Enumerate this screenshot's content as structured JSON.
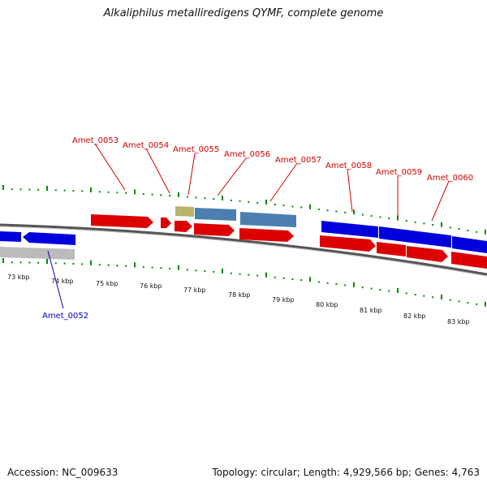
{
  "title": "Alkaliphilus metalliredigens QYMF, complete genome",
  "footer": {
    "accession": "Accession: NC_009633",
    "summary": "Topology: circular; Length: 4,929,566 bp; Genes: 4,763"
  },
  "colors": {
    "tick": "#008800",
    "forward_gene": "#dd0000",
    "reverse_gene": "#0000dd",
    "steel_gene": "#4a7fb0",
    "olive_gene": "#b8b46a",
    "gray_gene": "#bbbbbb",
    "label_top": "#d40000",
    "label_bottom": "#0000cc"
  },
  "scale_labels": [
    "73 kbp",
    "74 kbp",
    "75 kbp",
    "76 kbp",
    "77 kbp",
    "78 kbp",
    "79 kbp",
    "80 kbp",
    "81 kbp",
    "82 kbp",
    "83 kbp"
  ],
  "gene_labels_top": [
    "Amet_0053",
    "Amet_0054",
    "Amet_0055",
    "Amet_0056",
    "Amet_0057",
    "Amet_0058",
    "Amet_0059",
    "Amet_0060"
  ],
  "gene_labels_bottom": [
    "Amet_0052"
  ]
}
